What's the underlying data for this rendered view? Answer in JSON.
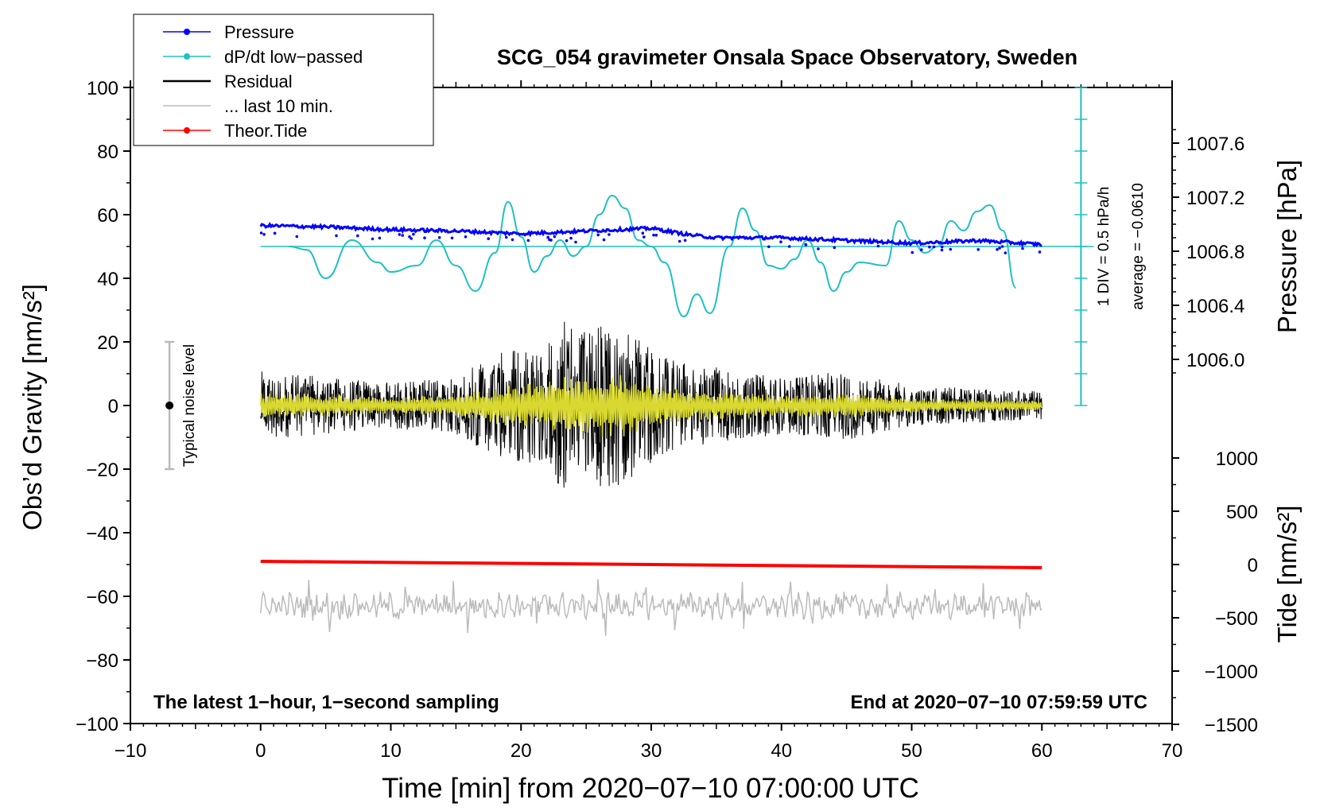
{
  "chart_data": {
    "type": "line",
    "title": "SCG_054 gravimeter Onsala Space Observatory, Sweden",
    "xlabel": "Time [min] from 2020−07−10 07:00:00 UTC",
    "ylabel_main": "Obs’d Gravity [nm/s²]",
    "ylabel_pressure": "Pressure [hPa]",
    "ylabel_tide": "Tide [nm/s²]",
    "xlim": [
      -10,
      70
    ],
    "ylim": [
      -100,
      100
    ],
    "x_ticks": [
      "−10",
      "0",
      "10",
      "20",
      "30",
      "40",
      "50",
      "60",
      "70"
    ],
    "y_ticks": [
      "−100",
      "−80",
      "−60",
      "−40",
      "−20",
      "0",
      "20",
      "40",
      "60",
      "80",
      "100"
    ],
    "pressure_ticks": [
      "1006.0",
      "1006.4",
      "1006.8",
      "1007.2",
      "1007.6"
    ],
    "tide_ticks": [
      "−1500",
      "−1000",
      "−500",
      "0",
      "500",
      "1000"
    ],
    "legend": [
      {
        "label": "Pressure",
        "color": "#0000ff"
      },
      {
        "label": "dP/dt low−passed",
        "color": "#20c0c0"
      },
      {
        "label": "Residual",
        "color": "#000000"
      },
      {
        "label": "... last 10 min.",
        "color": "#bbbbbb"
      },
      {
        "label": "Theor.Tide",
        "color": "#ff0000"
      }
    ],
    "annotations": {
      "noise": "Typical noise level",
      "scale_div": "1 DIV = 0.5 hPa/h",
      "scale_avg": "average = −0.0610",
      "bottom_left": "The latest 1−hour, 1−second sampling",
      "bottom_right": "End at 2020−07−10 07:59:59 UTC"
    },
    "noise_level_range": [
      -20,
      20
    ],
    "series": [
      {
        "name": "Pressure",
        "unit": "hPa",
        "x": [
          0,
          5,
          10,
          15,
          20,
          25,
          30,
          33,
          35,
          40,
          45,
          50,
          53,
          55,
          60
        ],
        "values": [
          1006.99,
          1006.98,
          1006.96,
          1006.95,
          1006.93,
          1006.95,
          1006.97,
          1006.92,
          1006.9,
          1006.9,
          1006.88,
          1006.86,
          1006.87,
          1006.88,
          1006.85
        ]
      },
      {
        "name": "dP/dt low-passed",
        "unit": "gravity-axis units",
        "x": [
          2.2,
          3.5,
          5,
          7,
          9,
          10,
          12,
          13.5,
          15,
          16.5,
          18,
          19,
          20,
          21,
          22,
          23,
          24,
          25,
          26,
          27,
          28,
          29,
          30,
          31,
          32.5,
          33.5,
          34.5,
          36,
          37,
          38,
          39,
          40,
          41,
          42,
          43,
          44,
          45,
          46,
          48,
          49,
          50,
          51,
          52,
          53,
          54,
          55,
          56,
          57,
          58
        ],
        "values": [
          50,
          49,
          40,
          52,
          45,
          42,
          44,
          52,
          44,
          36,
          48,
          64,
          53,
          42,
          47,
          52,
          47,
          50,
          60,
          66,
          62,
          52,
          50,
          45,
          28,
          35,
          29,
          50,
          62,
          55,
          44,
          43,
          46,
          52,
          45,
          36,
          42,
          45,
          44,
          58,
          52,
          48,
          50,
          58,
          55,
          61,
          63,
          55,
          37
        ]
      },
      {
        "name": "Residual",
        "unit": "nm/s²",
        "x": [
          0,
          10,
          15,
          18,
          22,
          23,
          25,
          27,
          28,
          30,
          33,
          36,
          40,
          45,
          50,
          55,
          60
        ],
        "envelope": [
          12,
          8,
          10,
          18,
          22,
          30,
          26,
          30,
          28,
          20,
          14,
          13,
          10,
          12,
          7,
          6,
          5
        ]
      },
      {
        "name": "... last 10 min.",
        "unit": "nm/s²",
        "x": [
          0,
          60
        ],
        "values": [
          -63,
          -63
        ]
      },
      {
        "name": "Theor.Tide",
        "unit": "nm/s²",
        "x": [
          0,
          60
        ],
        "values": [
          -49,
          -51
        ]
      }
    ]
  }
}
